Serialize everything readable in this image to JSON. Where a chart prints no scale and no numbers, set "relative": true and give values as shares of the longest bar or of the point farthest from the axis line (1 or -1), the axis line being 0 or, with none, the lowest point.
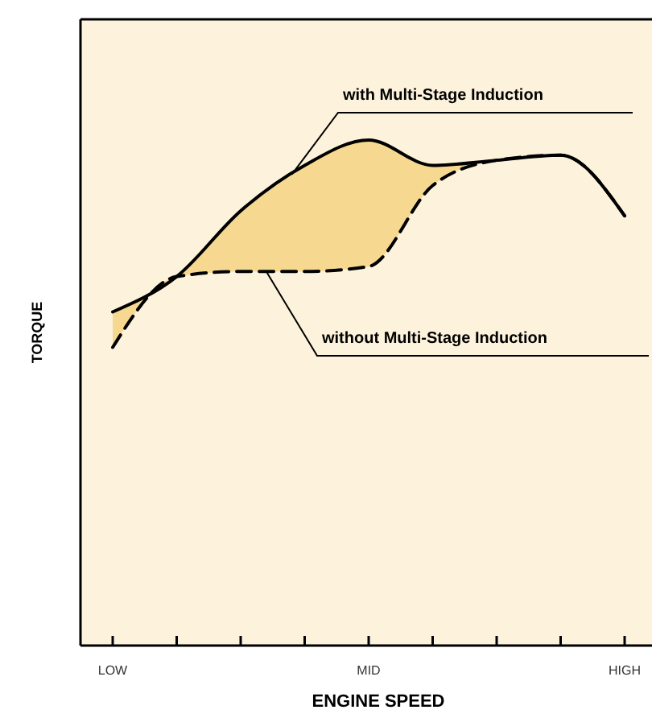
{
  "chart_data": {
    "type": "line",
    "relative": true,
    "xlabel": "ENGINE SPEED",
    "ylabel": "TORQUE",
    "categories": [
      "LOW",
      null,
      null,
      null,
      "MID",
      null,
      null,
      null,
      "HIGH"
    ],
    "series": [
      {
        "name": "with Multi-Stage Induction",
        "color": "#000000",
        "line_style": "solid",
        "values": [
          0.66,
          0.73,
          0.86,
          0.95,
          1,
          0.95,
          0.96,
          0.97,
          0.85
        ],
        "lower": [
          0.59,
          0.73,
          0.74,
          0.74,
          0.75,
          0.91,
          0.96,
          0.97,
          0.85
        ],
        "upper": [
          0.66,
          0.73,
          0.86,
          0.95,
          1,
          0.95,
          0.96,
          0.97,
          0.85
        ]
      },
      {
        "name": "without Multi-Stage Induction",
        "color": "#000000",
        "line_style": "dashed",
        "values": [
          0.59,
          0.73,
          0.74,
          0.74,
          0.75,
          0.91,
          0.96,
          0.97,
          0.85
        ]
      }
    ],
    "marker": "none"
  }
}
